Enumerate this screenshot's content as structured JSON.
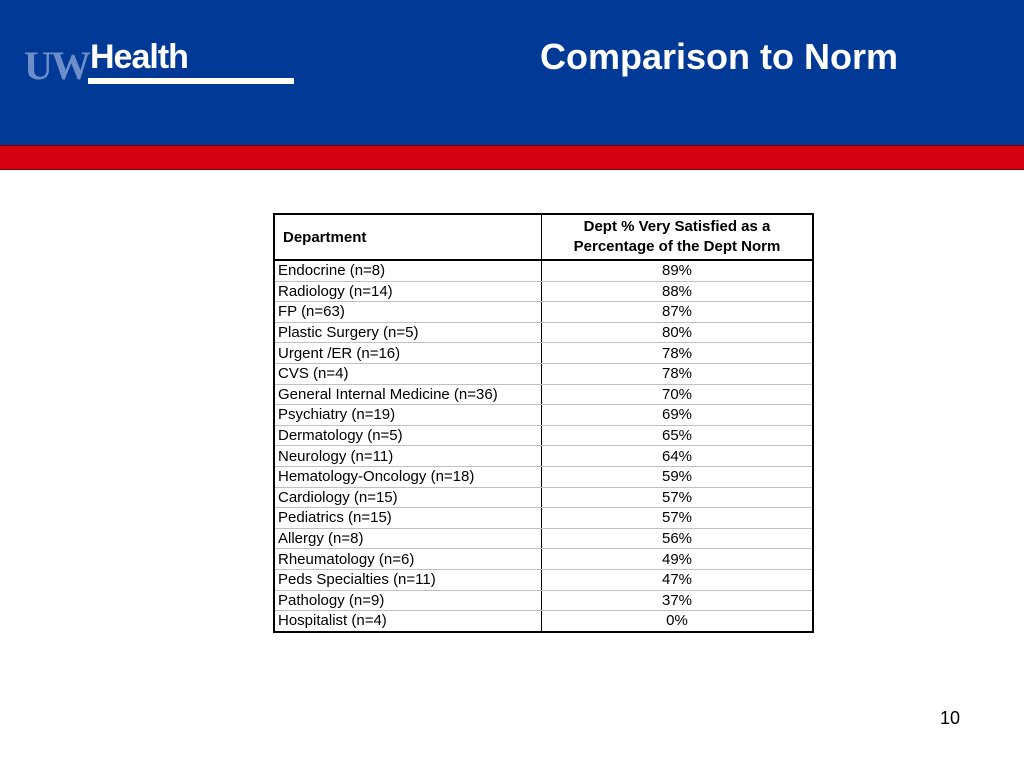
{
  "header": {
    "logo_uw": "UW",
    "logo_health": "Health",
    "title": "Comparison to Norm"
  },
  "table": {
    "columns": [
      "Department",
      "Dept % Very Satisfied as a Percentage of the Dept Norm"
    ],
    "rows": [
      {
        "dept": "Endocrine (n=8)",
        "value": "89%"
      },
      {
        "dept": "Radiology (n=14)",
        "value": "88%"
      },
      {
        "dept": "FP (n=63)",
        "value": "87%"
      },
      {
        "dept": "Plastic Surgery (n=5)",
        "value": "80%"
      },
      {
        "dept": "Urgent /ER (n=16)",
        "value": "78%"
      },
      {
        "dept": "CVS (n=4)",
        "value": "78%"
      },
      {
        "dept": "General Internal Medicine (n=36)",
        "value": "70%"
      },
      {
        "dept": "Psychiatry (n=19)",
        "value": "69%"
      },
      {
        "dept": "Dermatology (n=5)",
        "value": "65%"
      },
      {
        "dept": "Neurology (n=11)",
        "value": "64%"
      },
      {
        "dept": "Hematology-Oncology (n=18)",
        "value": "59%"
      },
      {
        "dept": "Cardiology (n=15)",
        "value": "57%"
      },
      {
        "dept": "Pediatrics (n=15)",
        "value": "57%"
      },
      {
        "dept": "Allergy (n=8)",
        "value": "56%"
      },
      {
        "dept": "Rheumatology (n=6)",
        "value": "49%"
      },
      {
        "dept": "Peds Specialties (n=11)",
        "value": "47%"
      },
      {
        "dept": "Pathology (n=9)",
        "value": "37%"
      },
      {
        "dept": "Hospitalist (n=4)",
        "value": "0%"
      }
    ]
  },
  "page_number": "10",
  "colors": {
    "header_blue": "#003a96",
    "accent_red": "#d4000f",
    "logo_light_blue": "#6d8ec9"
  }
}
